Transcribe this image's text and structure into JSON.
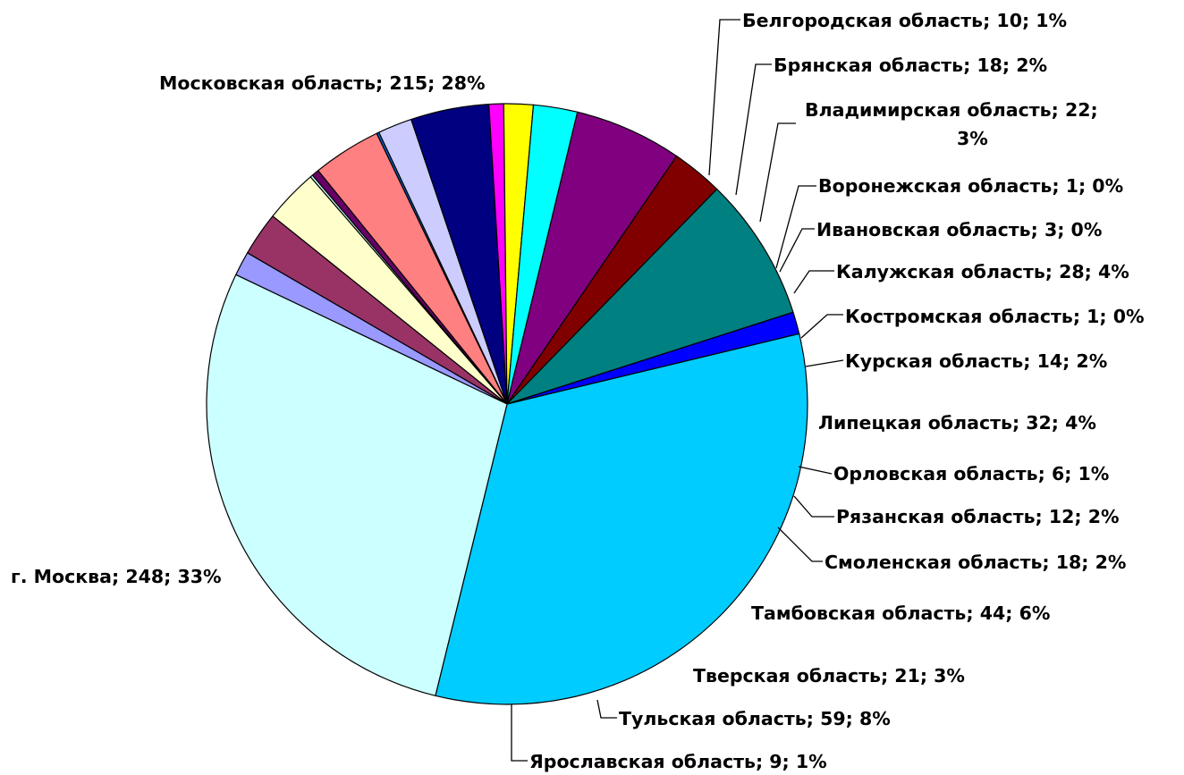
{
  "chart_data": {
    "type": "pie",
    "title": "",
    "start_category": "Белгородская область",
    "direction": "clockwise",
    "label_format": "{name}; {value}; {percent}",
    "slices": [
      {
        "name": "Белгородская область",
        "value": 10,
        "percent": "1%",
        "color": "#9999ff"
      },
      {
        "name": "Брянская область",
        "value": 18,
        "percent": "2%",
        "color": "#993366"
      },
      {
        "name": "Владимирская область",
        "value": 22,
        "percent": "3%",
        "color": "#ffffcc"
      },
      {
        "name": "Воронежская область",
        "value": 1,
        "percent": "0%",
        "color": "#ccffff"
      },
      {
        "name": "Ивановская область",
        "value": 3,
        "percent": "0%",
        "color": "#660066"
      },
      {
        "name": "Калужская область",
        "value": 28,
        "percent": "4%",
        "color": "#ff8080"
      },
      {
        "name": "Костромская область",
        "value": 1,
        "percent": "0%",
        "color": "#0066cc"
      },
      {
        "name": "Курская область",
        "value": 14,
        "percent": "2%",
        "color": "#ccccff"
      },
      {
        "name": "Липецкая область",
        "value": 32,
        "percent": "4%",
        "color": "#000080"
      },
      {
        "name": "Орловская область",
        "value": 6,
        "percent": "1%",
        "color": "#ff00ff"
      },
      {
        "name": "Рязанская область",
        "value": 12,
        "percent": "2%",
        "color": "#ffff00"
      },
      {
        "name": "Смоленская область",
        "value": 18,
        "percent": "2%",
        "color": "#00ffff"
      },
      {
        "name": "Тамбовская область",
        "value": 44,
        "percent": "6%",
        "color": "#800080"
      },
      {
        "name": "Тверская область",
        "value": 21,
        "percent": "3%",
        "color": "#800000"
      },
      {
        "name": "Тульская область",
        "value": 59,
        "percent": "8%",
        "color": "#008080"
      },
      {
        "name": "Ярославская область",
        "value": 9,
        "percent": "1%",
        "color": "#0000ff"
      },
      {
        "name": "г. Москва",
        "value": 248,
        "percent": "33%",
        "color": "#00ccff"
      },
      {
        "name": "Московская область",
        "value": 215,
        "percent": "28%",
        "color": "#ccffff"
      }
    ]
  }
}
